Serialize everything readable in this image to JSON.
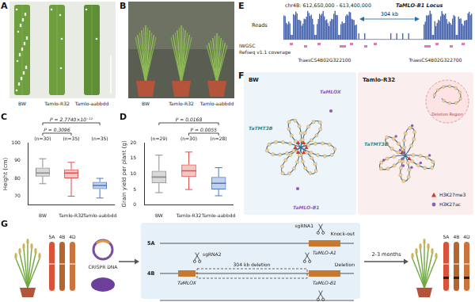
{
  "panel_labels": [
    "A",
    "B",
    "C",
    "D",
    "E",
    "F",
    "G"
  ],
  "photos": {
    "A": {
      "labels": [
        "BW",
        "Tamlo-R32",
        "Tamlo-aabbdd"
      ]
    },
    "B": {
      "labels": [
        "BW",
        "Tamlo-R32",
        "Tamlo-aabbdd"
      ]
    }
  },
  "chart_data": [
    {
      "type": "box",
      "panel": "C",
      "y_label": "Height (cm)",
      "categories": [
        "BW",
        "Tamlo-R32",
        "Tamlo-aabbdd"
      ],
      "colors": [
        "#8c8c8c",
        "#d9534f",
        "#4a78c2"
      ],
      "min": [
        77,
        70,
        69
      ],
      "q1": [
        81,
        80,
        74
      ],
      "median": [
        83,
        83,
        76
      ],
      "q3": [
        86,
        85,
        78
      ],
      "max": [
        91,
        89,
        80
      ],
      "n_labels": [
        "(n=30)",
        "(n=35)",
        "(n=35)"
      ],
      "comparisons": [
        {
          "from": "BW",
          "to": "Tamlo-aabbdd",
          "label": "P = 2.7740×10⁻¹²"
        },
        {
          "from": "BW",
          "to": "Tamlo-R32",
          "label": "P = 0.3096"
        }
      ],
      "ylim": [
        65,
        100
      ],
      "yticks": [
        70,
        80,
        90,
        100
      ],
      "grid": false
    },
    {
      "type": "box",
      "panel": "D",
      "y_label": "Grain yield per plant (g)",
      "categories": [
        "BW",
        "Tamlo-R32",
        "Tamlo-aabbdd"
      ],
      "colors": [
        "#8c8c8c",
        "#d9534f",
        "#4a78c2"
      ],
      "min": [
        4,
        5,
        3
      ],
      "q1": [
        7,
        9,
        5
      ],
      "median": [
        9,
        11,
        7
      ],
      "q3": [
        11,
        13,
        9
      ],
      "max": [
        16,
        17,
        12
      ],
      "n_labels": [
        "(n=29)",
        "(n=30)",
        "(n=28)"
      ],
      "comparisons": [
        {
          "from": "BW",
          "to": "Tamlo-aabbdd",
          "label": "P = 0.0168"
        },
        {
          "from": "Tamlo-R32",
          "to": "Tamlo-aabbdd",
          "label": "P = 0.0055"
        }
      ],
      "ylim": [
        0,
        20
      ],
      "yticks": [
        0,
        5,
        10,
        15,
        20
      ],
      "grid": false
    }
  ],
  "genome_track": {
    "region": "chr4B: 612,650,000 - 613,400,000",
    "locus": "TaMLO-B1 Locus",
    "deletion_size": "304 kb",
    "reads_label": "Reads",
    "annotation_label": [
      "IWGSC",
      "Refseq v1.1 coverage"
    ],
    "genes": [
      "TraesCS4B02G322100",
      "TraesCS4B02G322700"
    ]
  },
  "chromatin_model": {
    "panels": [
      {
        "title": "BW",
        "genes": [
          "TaMLOX",
          "TaTMT3B",
          "TaMLO-B1"
        ]
      },
      {
        "title": "Tamlo-R32",
        "genes": [
          "TaTMT3B"
        ],
        "region_label": "Deletion Region"
      }
    ],
    "legend": [
      {
        "name": "H3K27me3",
        "color": "#d9312b",
        "marker": "triangle"
      },
      {
        "name": "H3K27ac",
        "color": "#8e5bb5",
        "marker": "circle"
      }
    ]
  },
  "workflow": {
    "start_chromosomes": [
      "5A",
      "4B",
      "4D"
    ],
    "reagent": "CRISPR DNA",
    "rows": [
      {
        "chromosome": "5A",
        "guide": "sgRNA1",
        "genes": [
          "TaMLO-A1"
        ],
        "outcome": "Knock-out"
      },
      {
        "chromosome": "4B",
        "guide": "sgRNA2",
        "genes": [
          "TaMLOX",
          "TaMLO-B1"
        ],
        "edit": "304 kb deletion",
        "outcome": "Deletion"
      }
    ],
    "duration": "2-3 months",
    "end_chromosomes": [
      "5A",
      "4B",
      "4D"
    ]
  }
}
